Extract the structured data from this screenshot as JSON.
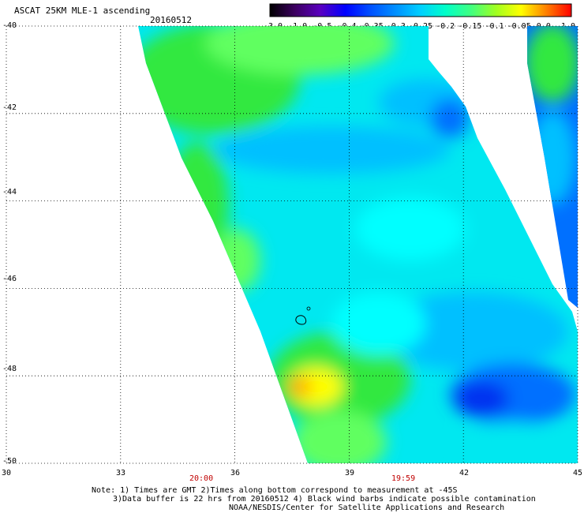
{
  "header": {
    "title": "ASCAT 25KM MLE-1 ascending",
    "date": "20160512"
  },
  "colorbar": {
    "tick_labels": [
      "-3.0",
      "-1.0",
      "-0.5",
      "-0.4",
      "-0.35",
      "-0.3",
      "-0.25",
      "-0.2",
      "-0.15",
      "-0.1",
      "-0.05",
      "0.0",
      "1.0"
    ],
    "colors": [
      "#000000",
      "#3c0060",
      "#5a00c0",
      "#0000ff",
      "#0050ff",
      "#0090ff",
      "#00d0ff",
      "#00ffc8",
      "#40ff80",
      "#a0ff20",
      "#ffff00",
      "#ff8000",
      "#ff0000"
    ]
  },
  "map": {
    "x_ticks": [
      "30",
      "33",
      "36",
      "39",
      "42",
      "45"
    ],
    "y_ticks": [
      "-40",
      "-42",
      "-44",
      "-46",
      "-48",
      "-50"
    ],
    "lon_range": [
      30,
      45
    ],
    "lat_range": [
      -50,
      -40
    ],
    "time_labels": [
      "20:00",
      "19:59"
    ],
    "grid": "dotted",
    "field_colors": {
      "green": "#30e840",
      "lightgreen": "#60ff60",
      "cyan": "#00ffff",
      "aqua": "#00e8f0",
      "lightblue": "#00c0ff",
      "blue": "#0070ff",
      "deepblue": "#0030f0",
      "yellow": "#ffff00",
      "orange": "#ffa000"
    }
  },
  "notes": {
    "line1": "Note: 1) Times are GMT 2)Times along bottom correspond to measurement at -45S",
    "line2": "3)Data buffer is 22 hrs from 20160512 4) Black wind barbs indicate possible contamination",
    "line3": "NOAA/NESDIS/Center for Satellite Applications and Research"
  }
}
